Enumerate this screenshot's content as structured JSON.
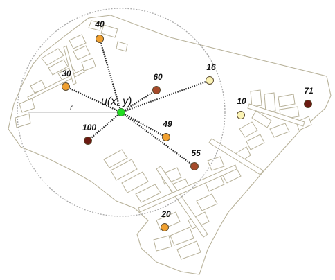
{
  "user": {
    "label": "u(x, y)",
    "color": "#22dd22"
  },
  "radius_label": "r",
  "colors": {
    "very_high": "#6b1a12",
    "high": "#a64a2a",
    "medium": "#f0a030",
    "low": "#fbf3b4"
  },
  "pois": [
    {
      "id": "poi-40",
      "label": "40",
      "level": "medium",
      "linked": true
    },
    {
      "id": "poi-30",
      "label": "30",
      "level": "medium",
      "linked": true
    },
    {
      "id": "poi-60",
      "label": "60",
      "level": "high",
      "linked": true
    },
    {
      "id": "poi-16",
      "label": "16",
      "level": "low",
      "linked": true
    },
    {
      "id": "poi-10",
      "label": "10",
      "level": "low",
      "linked": false
    },
    {
      "id": "poi-71",
      "label": "71",
      "level": "very_high",
      "linked": false
    },
    {
      "id": "poi-100",
      "label": "100",
      "level": "very_high",
      "linked": true
    },
    {
      "id": "poi-49",
      "label": "49",
      "level": "medium",
      "linked": true
    },
    {
      "id": "poi-55",
      "label": "55",
      "level": "high",
      "linked": true
    },
    {
      "id": "poi-20",
      "label": "20",
      "level": "medium",
      "linked": false
    }
  ]
}
